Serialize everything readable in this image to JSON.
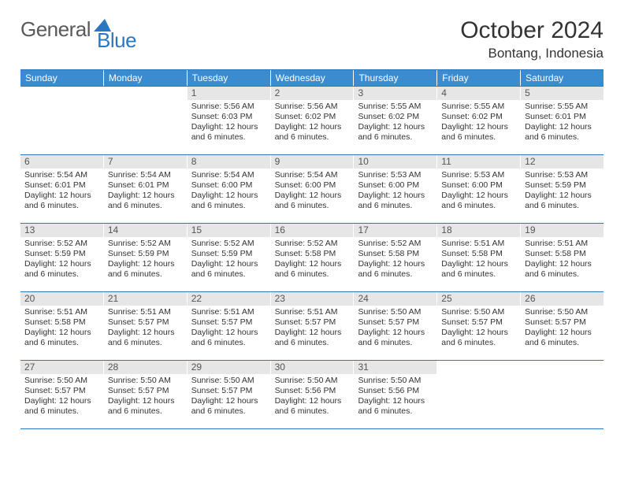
{
  "logo": {
    "text1": "General",
    "text2": "Blue"
  },
  "title": "October 2024",
  "location": "Bontang, Indonesia",
  "colors": {
    "header_bg": "#3a8bd0",
    "border": "#2b77c0",
    "daynum_bg": "#e6e6e6",
    "logo_gray": "#5a5a5a",
    "logo_blue": "#2b77c0"
  },
  "day_names": [
    "Sunday",
    "Monday",
    "Tuesday",
    "Wednesday",
    "Thursday",
    "Friday",
    "Saturday"
  ],
  "weeks": [
    [
      {
        "n": "",
        "sr": "",
        "ss": "",
        "dl": ""
      },
      {
        "n": "",
        "sr": "",
        "ss": "",
        "dl": ""
      },
      {
        "n": "1",
        "sr": "Sunrise: 5:56 AM",
        "ss": "Sunset: 6:03 PM",
        "dl": "Daylight: 12 hours and 6 minutes."
      },
      {
        "n": "2",
        "sr": "Sunrise: 5:56 AM",
        "ss": "Sunset: 6:02 PM",
        "dl": "Daylight: 12 hours and 6 minutes."
      },
      {
        "n": "3",
        "sr": "Sunrise: 5:55 AM",
        "ss": "Sunset: 6:02 PM",
        "dl": "Daylight: 12 hours and 6 minutes."
      },
      {
        "n": "4",
        "sr": "Sunrise: 5:55 AM",
        "ss": "Sunset: 6:02 PM",
        "dl": "Daylight: 12 hours and 6 minutes."
      },
      {
        "n": "5",
        "sr": "Sunrise: 5:55 AM",
        "ss": "Sunset: 6:01 PM",
        "dl": "Daylight: 12 hours and 6 minutes."
      }
    ],
    [
      {
        "n": "6",
        "sr": "Sunrise: 5:54 AM",
        "ss": "Sunset: 6:01 PM",
        "dl": "Daylight: 12 hours and 6 minutes."
      },
      {
        "n": "7",
        "sr": "Sunrise: 5:54 AM",
        "ss": "Sunset: 6:01 PM",
        "dl": "Daylight: 12 hours and 6 minutes."
      },
      {
        "n": "8",
        "sr": "Sunrise: 5:54 AM",
        "ss": "Sunset: 6:00 PM",
        "dl": "Daylight: 12 hours and 6 minutes."
      },
      {
        "n": "9",
        "sr": "Sunrise: 5:54 AM",
        "ss": "Sunset: 6:00 PM",
        "dl": "Daylight: 12 hours and 6 minutes."
      },
      {
        "n": "10",
        "sr": "Sunrise: 5:53 AM",
        "ss": "Sunset: 6:00 PM",
        "dl": "Daylight: 12 hours and 6 minutes."
      },
      {
        "n": "11",
        "sr": "Sunrise: 5:53 AM",
        "ss": "Sunset: 6:00 PM",
        "dl": "Daylight: 12 hours and 6 minutes."
      },
      {
        "n": "12",
        "sr": "Sunrise: 5:53 AM",
        "ss": "Sunset: 5:59 PM",
        "dl": "Daylight: 12 hours and 6 minutes."
      }
    ],
    [
      {
        "n": "13",
        "sr": "Sunrise: 5:52 AM",
        "ss": "Sunset: 5:59 PM",
        "dl": "Daylight: 12 hours and 6 minutes."
      },
      {
        "n": "14",
        "sr": "Sunrise: 5:52 AM",
        "ss": "Sunset: 5:59 PM",
        "dl": "Daylight: 12 hours and 6 minutes."
      },
      {
        "n": "15",
        "sr": "Sunrise: 5:52 AM",
        "ss": "Sunset: 5:59 PM",
        "dl": "Daylight: 12 hours and 6 minutes."
      },
      {
        "n": "16",
        "sr": "Sunrise: 5:52 AM",
        "ss": "Sunset: 5:58 PM",
        "dl": "Daylight: 12 hours and 6 minutes."
      },
      {
        "n": "17",
        "sr": "Sunrise: 5:52 AM",
        "ss": "Sunset: 5:58 PM",
        "dl": "Daylight: 12 hours and 6 minutes."
      },
      {
        "n": "18",
        "sr": "Sunrise: 5:51 AM",
        "ss": "Sunset: 5:58 PM",
        "dl": "Daylight: 12 hours and 6 minutes."
      },
      {
        "n": "19",
        "sr": "Sunrise: 5:51 AM",
        "ss": "Sunset: 5:58 PM",
        "dl": "Daylight: 12 hours and 6 minutes."
      }
    ],
    [
      {
        "n": "20",
        "sr": "Sunrise: 5:51 AM",
        "ss": "Sunset: 5:58 PM",
        "dl": "Daylight: 12 hours and 6 minutes."
      },
      {
        "n": "21",
        "sr": "Sunrise: 5:51 AM",
        "ss": "Sunset: 5:57 PM",
        "dl": "Daylight: 12 hours and 6 minutes."
      },
      {
        "n": "22",
        "sr": "Sunrise: 5:51 AM",
        "ss": "Sunset: 5:57 PM",
        "dl": "Daylight: 12 hours and 6 minutes."
      },
      {
        "n": "23",
        "sr": "Sunrise: 5:51 AM",
        "ss": "Sunset: 5:57 PM",
        "dl": "Daylight: 12 hours and 6 minutes."
      },
      {
        "n": "24",
        "sr": "Sunrise: 5:50 AM",
        "ss": "Sunset: 5:57 PM",
        "dl": "Daylight: 12 hours and 6 minutes."
      },
      {
        "n": "25",
        "sr": "Sunrise: 5:50 AM",
        "ss": "Sunset: 5:57 PM",
        "dl": "Daylight: 12 hours and 6 minutes."
      },
      {
        "n": "26",
        "sr": "Sunrise: 5:50 AM",
        "ss": "Sunset: 5:57 PM",
        "dl": "Daylight: 12 hours and 6 minutes."
      }
    ],
    [
      {
        "n": "27",
        "sr": "Sunrise: 5:50 AM",
        "ss": "Sunset: 5:57 PM",
        "dl": "Daylight: 12 hours and 6 minutes."
      },
      {
        "n": "28",
        "sr": "Sunrise: 5:50 AM",
        "ss": "Sunset: 5:57 PM",
        "dl": "Daylight: 12 hours and 6 minutes."
      },
      {
        "n": "29",
        "sr": "Sunrise: 5:50 AM",
        "ss": "Sunset: 5:57 PM",
        "dl": "Daylight: 12 hours and 6 minutes."
      },
      {
        "n": "30",
        "sr": "Sunrise: 5:50 AM",
        "ss": "Sunset: 5:56 PM",
        "dl": "Daylight: 12 hours and 6 minutes."
      },
      {
        "n": "31",
        "sr": "Sunrise: 5:50 AM",
        "ss": "Sunset: 5:56 PM",
        "dl": "Daylight: 12 hours and 6 minutes."
      },
      {
        "n": "",
        "sr": "",
        "ss": "",
        "dl": ""
      },
      {
        "n": "",
        "sr": "",
        "ss": "",
        "dl": ""
      }
    ]
  ]
}
